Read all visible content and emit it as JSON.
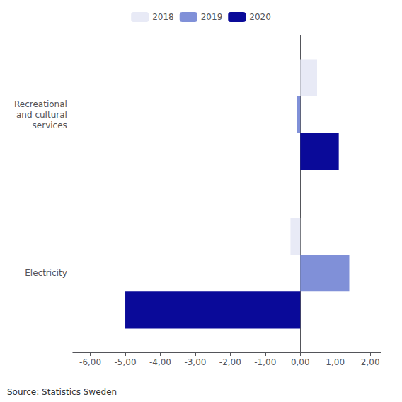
{
  "chart_data": {
    "type": "bar",
    "orientation": "horizontal",
    "categories": [
      "Recreational\nand cultural\nservices",
      "Electricity"
    ],
    "series": [
      {
        "name": "2018",
        "color": "#e8eaf6",
        "values": [
          0.48,
          -0.28
        ]
      },
      {
        "name": "2019",
        "color": "#8090d8",
        "values": [
          -0.1,
          1.4
        ]
      },
      {
        "name": "2020",
        "color": "#0a0a99",
        "values": [
          1.1,
          -5.0
        ]
      }
    ],
    "xlim": [
      -6.5,
      2.3
    ],
    "xticks": [
      {
        "value": -6.0,
        "label": "-6,00"
      },
      {
        "value": -5.0,
        "label": "-5,00"
      },
      {
        "value": -4.0,
        "label": "-4,00"
      },
      {
        "value": -3.0,
        "label": "-3,00"
      },
      {
        "value": -2.0,
        "label": "-2,00"
      },
      {
        "value": -1.0,
        "label": "-1,00"
      },
      {
        "value": 0.0,
        "label": "0,00"
      },
      {
        "value": 1.0,
        "label": "1,00"
      },
      {
        "value": 2.0,
        "label": "2,00"
      }
    ],
    "annotations": [
      "Source: Statistics Sweden"
    ],
    "legend": "top",
    "grid": false
  }
}
